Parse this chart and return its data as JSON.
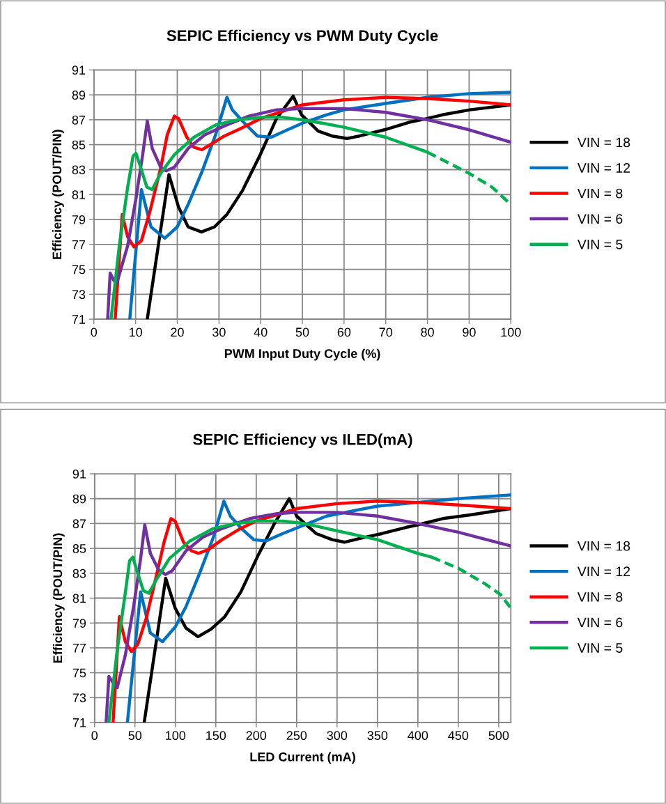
{
  "chart_data": [
    {
      "type": "line",
      "title": "SEPIC Efficiency vs PWM Duty Cycle",
      "xlabel": "PWM Input Duty Cycle (%)",
      "ylabel": "Efficiency (POUT/PIN)",
      "xlim": [
        0,
        100
      ],
      "xticks": [
        0,
        10,
        20,
        30,
        40,
        50,
        60,
        70,
        80,
        90,
        100
      ],
      "ylim": [
        71,
        91
      ],
      "yticks": [
        71,
        73,
        75,
        77,
        79,
        81,
        83,
        85,
        87,
        89,
        91
      ],
      "grid": true,
      "legend": "right",
      "marker": "none",
      "line_style": "solid",
      "series": [
        {
          "name": "VIN = 18",
          "color": "#000000",
          "x": [
            12.8,
            18,
            20.3,
            22.6,
            25.8,
            28.9,
            31.9,
            35.6,
            39.9,
            43.8,
            47.8,
            49.8,
            53.8,
            57.1,
            60.7,
            63.7,
            69.7,
            75.6,
            79.9,
            83.6,
            90.2,
            100
          ],
          "values": [
            71,
            82.6,
            80.0,
            78.4,
            78.0,
            78.4,
            79.4,
            81.3,
            84.2,
            87.1,
            88.9,
            87.4,
            86.1,
            85.7,
            85.5,
            85.7,
            86.2,
            86.8,
            87.1,
            87.4,
            87.8,
            88.2
          ]
        },
        {
          "name": "VIN = 12",
          "color": "#0070c0",
          "x": [
            8.6,
            11.4,
            13.7,
            17.0,
            20.0,
            22.6,
            26.0,
            29.3,
            31.9,
            33.2,
            35.9,
            39.2,
            42.5,
            45.8,
            50.5,
            55.8,
            60,
            69.7,
            79.9,
            90,
            100
          ],
          "values": [
            71,
            81.4,
            78.4,
            77.5,
            78.4,
            80.2,
            82.9,
            85.9,
            88.8,
            87.8,
            86.8,
            85.7,
            85.6,
            86.1,
            86.8,
            87.4,
            87.8,
            88.3,
            88.8,
            89.1,
            89.2
          ]
        },
        {
          "name": "VIN = 8",
          "color": "#ff0000",
          "x": [
            5.1,
            6.8,
            8.1,
            9.6,
            11.4,
            13.4,
            16.0,
            17.6,
            19.3,
            20.3,
            22.3,
            24.0,
            25.9,
            27.9,
            31.3,
            35.2,
            40,
            50,
            60,
            70,
            80,
            90,
            100
          ],
          "values": [
            71,
            79.4,
            77.6,
            76.8,
            77.3,
            79.6,
            83.1,
            85.8,
            87.3,
            87.1,
            85.6,
            84.8,
            84.6,
            85.0,
            85.7,
            86.3,
            87.1,
            88.2,
            88.6,
            88.8,
            88.7,
            88.5,
            88.2
          ]
        },
        {
          "name": "VIN = 6",
          "color": "#7030a0",
          "x": [
            3.3,
            3.9,
            4.8,
            5.5,
            8.1,
            10.1,
            11.7,
            12.8,
            14.0,
            16.0,
            17.3,
            19.3,
            22.6,
            26.6,
            31.9,
            37.2,
            43.8,
            50,
            60,
            70,
            80,
            90,
            100
          ],
          "values": [
            71,
            74.7,
            74.1,
            73.9,
            76.9,
            80.7,
            84.2,
            86.9,
            84.7,
            83.2,
            82.9,
            83.2,
            84.7,
            85.8,
            86.6,
            87.3,
            87.8,
            87.9,
            87.9,
            87.6,
            87.0,
            86.2,
            85.2
          ]
        },
        {
          "name": "VIN = 5",
          "color": "#00b050",
          "x": [
            4.1,
            6.1,
            8.1,
            9.4,
            10.1,
            11.1,
            12.7,
            14.0,
            16.0,
            19.3,
            24.0,
            29.3,
            34.6,
            40,
            45.2,
            50,
            55.2,
            60,
            70,
            80
          ],
          "values": [
            71,
            76.9,
            81.6,
            84.1,
            84.3,
            83.3,
            81.6,
            81.4,
            82.7,
            84.2,
            85.6,
            86.6,
            87.0,
            87.2,
            87.2,
            87.0,
            86.7,
            86.4,
            85.6,
            84.4
          ]
        },
        {
          "color": "#00b050",
          "line_style": "dashed",
          "x": [
            80,
            90,
            95.5,
            100
          ],
          "values": [
            84.4,
            82.7,
            81.6,
            80.2
          ]
        }
      ]
    },
    {
      "type": "line",
      "title": "SEPIC Efficiency vs ILED(mA)",
      "xlabel": "LED Current (mA)",
      "ylabel": "Efficiency (POUT/PIN)",
      "xlim": [
        0,
        515
      ],
      "xticks": [
        0,
        50,
        100,
        150,
        200,
        250,
        300,
        350,
        400,
        450,
        500
      ],
      "ylim": [
        71,
        91
      ],
      "yticks": [
        71,
        73,
        75,
        77,
        79,
        81,
        83,
        85,
        87,
        89,
        91
      ],
      "grid": true,
      "legend": "right",
      "marker": "none",
      "line_style": "solid",
      "series": [
        {
          "name": "VIN = 18",
          "color": "#000000",
          "x": [
            61.4,
            88,
            99.7,
            113,
            128,
            144,
            161,
            181,
            202,
            222.5,
            241,
            250,
            274,
            294,
            309.6,
            328,
            356,
            386,
            400,
            431,
            465,
            515
          ],
          "values": [
            71,
            82.6,
            80.2,
            78.6,
            77.9,
            78.5,
            79.5,
            81.5,
            84.4,
            87.0,
            89.0,
            87.6,
            86.2,
            85.7,
            85.5,
            85.8,
            86.2,
            86.7,
            86.9,
            87.4,
            87.7,
            88.2
          ]
        },
        {
          "name": "VIN = 12",
          "color": "#0070c0",
          "x": [
            40.6,
            57,
            69,
            84,
            100,
            113,
            130,
            147,
            160,
            168,
            181.6,
            197,
            212,
            233,
            260,
            287,
            350,
            400,
            450,
            515
          ],
          "values": [
            71,
            81.5,
            78.2,
            77.5,
            78.7,
            80.3,
            83.0,
            85.9,
            88.8,
            87.6,
            86.6,
            85.7,
            85.6,
            86.2,
            86.9,
            87.6,
            88.4,
            88.7,
            89.0,
            89.3
          ]
        },
        {
          "name": "VIN = 8",
          "color": "#ff0000",
          "x": [
            22.9,
            30.7,
            38,
            45.7,
            53.6,
            64,
            75.8,
            86,
            94.5,
            99.7,
            110,
            120,
            128.7,
            140.6,
            157.7,
            178,
            200,
            250,
            300,
            350,
            400,
            450,
            515
          ],
          "values": [
            71,
            79.5,
            77.5,
            76.7,
            77.3,
            79.4,
            82.6,
            85.5,
            87.4,
            87.2,
            85.5,
            84.8,
            84.6,
            84.9,
            85.7,
            86.5,
            87.2,
            88.2,
            88.6,
            88.8,
            88.7,
            88.5,
            88.2
          ]
        },
        {
          "name": "VIN = 6",
          "color": "#7030a0",
          "x": [
            14.3,
            17.7,
            22.9,
            28,
            38,
            48.5,
            57,
            62.1,
            69,
            79,
            87.7,
            96,
            113,
            134,
            157.7,
            192,
            226,
            250,
            300,
            350,
            400,
            450,
            515
          ],
          "values": [
            71,
            74.7,
            74.2,
            73.8,
            76.4,
            80.4,
            84.2,
            86.9,
            84.6,
            83.3,
            82.9,
            83.2,
            84.8,
            85.9,
            86.6,
            87.4,
            87.8,
            87.9,
            87.9,
            87.6,
            87.0,
            86.3,
            85.2
          ]
        },
        {
          "name": "VIN = 5",
          "color": "#00b050",
          "x": [
            17.7,
            28,
            38.2,
            43.3,
            47.4,
            51.9,
            60.4,
            67.2,
            77.5,
            92.8,
            118,
            147,
            174.7,
            200,
            233,
            260,
            294,
            350,
            400,
            417
          ],
          "values": [
            71,
            76.8,
            81.5,
            84.0,
            84.3,
            83.3,
            81.6,
            81.4,
            82.6,
            84.2,
            85.6,
            86.6,
            87.0,
            87.2,
            87.2,
            87.0,
            86.5,
            85.7,
            84.6,
            84.3
          ]
        },
        {
          "color": "#00b050",
          "line_style": "dashed",
          "x": [
            417,
            450,
            482,
            502,
            515
          ],
          "values": [
            84.3,
            83.4,
            82.2,
            81.3,
            80.2
          ]
        }
      ]
    }
  ]
}
